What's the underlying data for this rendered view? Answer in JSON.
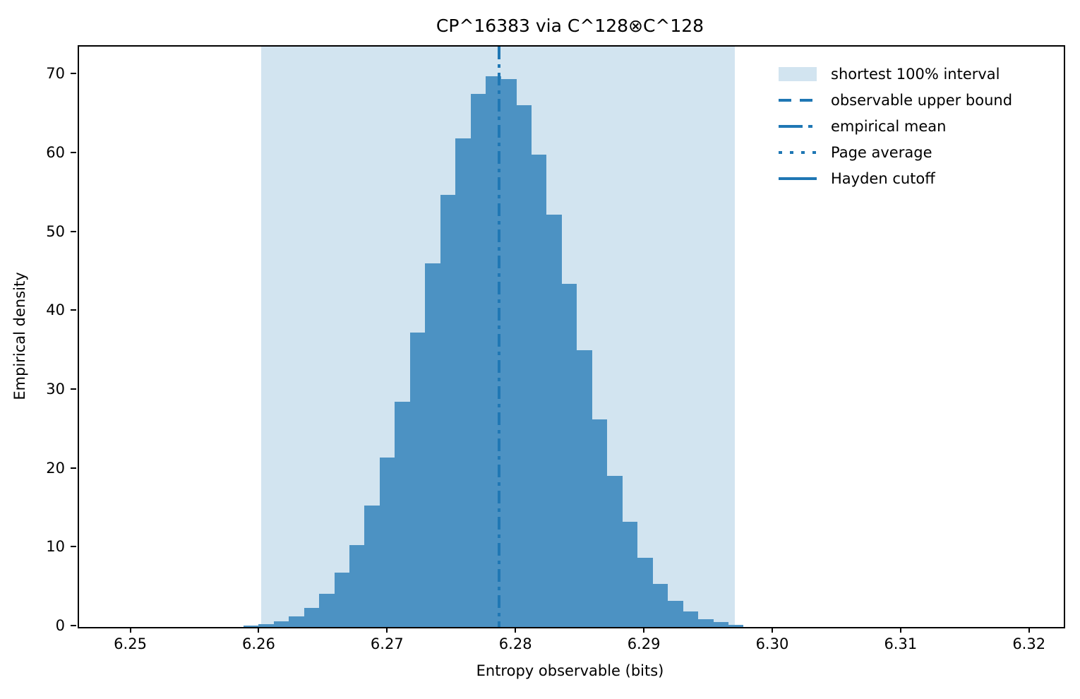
{
  "title": "CP^16383 via C^128⊗C^128",
  "xlabel": "Entropy observable (bits)",
  "ylabel": "Empirical density",
  "legend": [
    {
      "label": "shortest 100% interval",
      "style": "patch"
    },
    {
      "label": "observable upper bound",
      "style": "dashed"
    },
    {
      "label": "empirical mean",
      "style": "dashdot"
    },
    {
      "label": "Page average",
      "style": "dotted"
    },
    {
      "label": "Hayden cutoff",
      "style": "solid"
    }
  ],
  "colors": {
    "accent": "#1f77b4",
    "bar_fill": "#4c92c3",
    "interval_fill": "#d2e4f0",
    "text": "#000000"
  },
  "chart_data": {
    "type": "bar",
    "subtype": "histogram",
    "title": "CP^16383 via C^128⊗C^128",
    "xlabel": "Entropy observable (bits)",
    "ylabel": "Empirical density",
    "bin_start": 6.2587,
    "bin_width": 0.00118,
    "values": [
      0.2,
      0.4,
      0.75,
      1.35,
      2.45,
      4.2,
      6.9,
      10.4,
      15.4,
      21.5,
      28.6,
      37.3,
      46.1,
      54.8,
      62.0,
      67.6,
      69.8,
      69.5,
      66.2,
      59.9,
      52.3,
      43.5,
      35.1,
      26.3,
      19.2,
      13.3,
      8.8,
      5.5,
      3.3,
      2.0,
      1.0,
      0.6,
      0.3
    ],
    "shaded_interval": [
      6.2601,
      6.297
    ],
    "empirical_mean": 6.2786,
    "xlim": [
      6.2459,
      6.3226
    ],
    "ylim": [
      0,
      73.6
    ],
    "xticks": [
      "6.25",
      "6.26",
      "6.27",
      "6.28",
      "6.29",
      "6.30",
      "6.31",
      "6.32"
    ],
    "yticks": [
      "0",
      "10",
      "20",
      "30",
      "40",
      "50",
      "60",
      "70"
    ],
    "grid": false,
    "legend_position": "upper right"
  }
}
